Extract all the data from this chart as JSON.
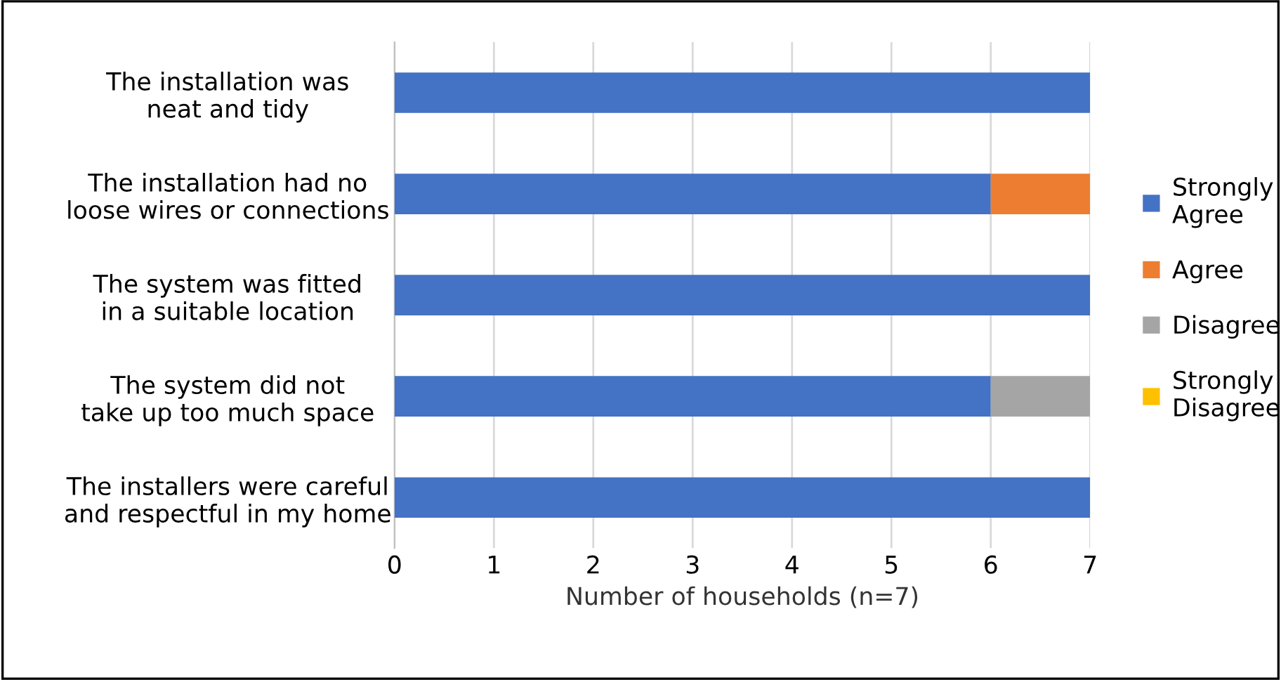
{
  "chart_data": {
    "type": "bar",
    "orientation": "horizontal",
    "stacked": true,
    "categories": [
      "The installation was\nneat and tidy",
      "The installation had no\nloose wires or connections",
      "The system was fitted\nin a suitable location",
      "The system did not\ntake up too much space",
      "The installers were careful\nand respectful in my home"
    ],
    "series": [
      {
        "name": "Strongly\nAgree",
        "color": "#4472c4",
        "values": [
          7,
          6,
          7,
          6,
          7
        ]
      },
      {
        "name": "Agree",
        "color": "#ed7d31",
        "values": [
          null,
          1,
          null,
          null,
          null
        ]
      },
      {
        "name": "Disagree",
        "color": "#a5a5a5",
        "values": [
          null,
          null,
          null,
          1,
          null
        ]
      },
      {
        "name": "Strongly\nDisagree",
        "color": "#ffc000",
        "values": [
          null,
          null,
          null,
          null,
          null
        ]
      }
    ],
    "xlabel": "Number of households (n=7)",
    "xlim": [
      0,
      7
    ],
    "xticks": [
      0,
      1,
      2,
      3,
      4,
      5,
      6,
      7
    ],
    "grid": "x",
    "legend": "right"
  }
}
